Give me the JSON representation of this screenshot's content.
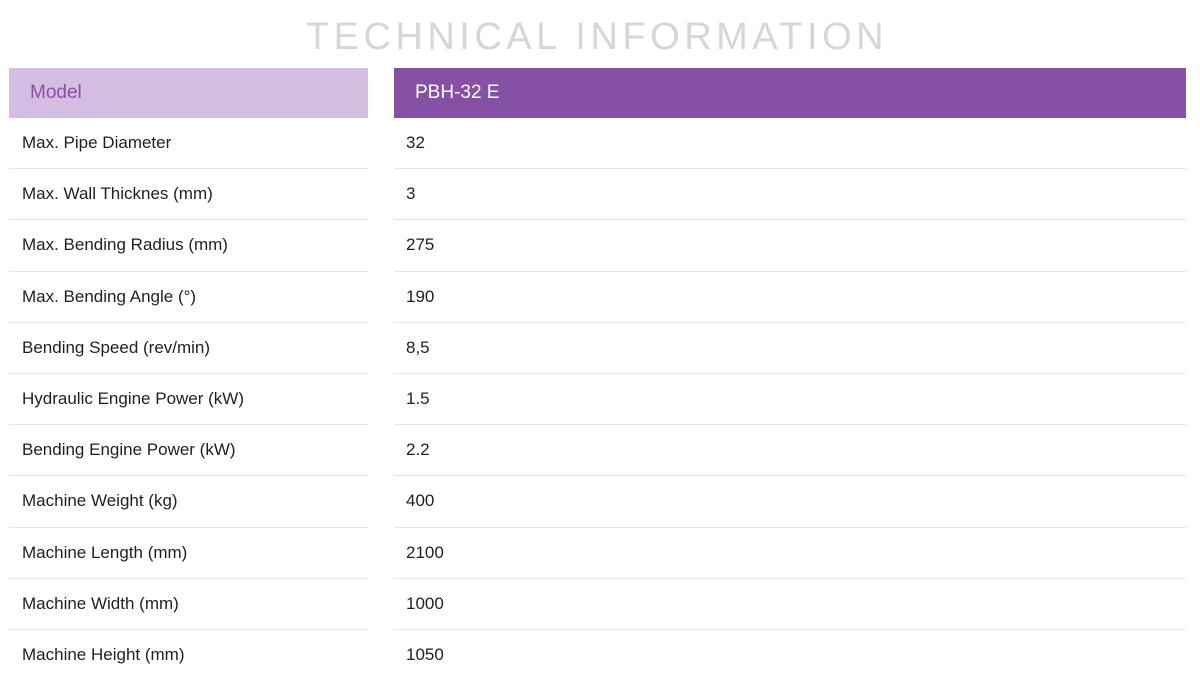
{
  "title": "TECHNICAL INFORMATION",
  "header": {
    "label": "Model",
    "value": "PBH-32 E"
  },
  "rows": [
    {
      "label": "Max. Pipe Diameter",
      "value": "32"
    },
    {
      "label": "Max. Wall Thicknes (mm)",
      "value": "3"
    },
    {
      "label": "Max. Bending Radius (mm)",
      "value": "275"
    },
    {
      "label": "Max. Bending Angle (°)",
      "value": "190"
    },
    {
      "label": "Bending Speed (rev/min)",
      "value": "8,5"
    },
    {
      "label": "Hydraulic Engine Power (kW)",
      "value": "1.5"
    },
    {
      "label": "Bending Engine Power (kW)",
      "value": "2.2"
    },
    {
      "label": "Machine Weight (kg)",
      "value": "400"
    },
    {
      "label": "Machine Length (mm)",
      "value": "2100"
    },
    {
      "label": "Machine Width (mm)",
      "value": "1000"
    },
    {
      "label": "Machine Height (mm)",
      "value": "1050"
    }
  ],
  "colors": {
    "header_left_bg": "#d4bde0",
    "header_left_text": "#8c4fa8",
    "header_right_bg": "#8650a4",
    "header_right_text": "#ffffff",
    "title_text": "#d6d6d6",
    "divider": "#e6e6e6"
  }
}
